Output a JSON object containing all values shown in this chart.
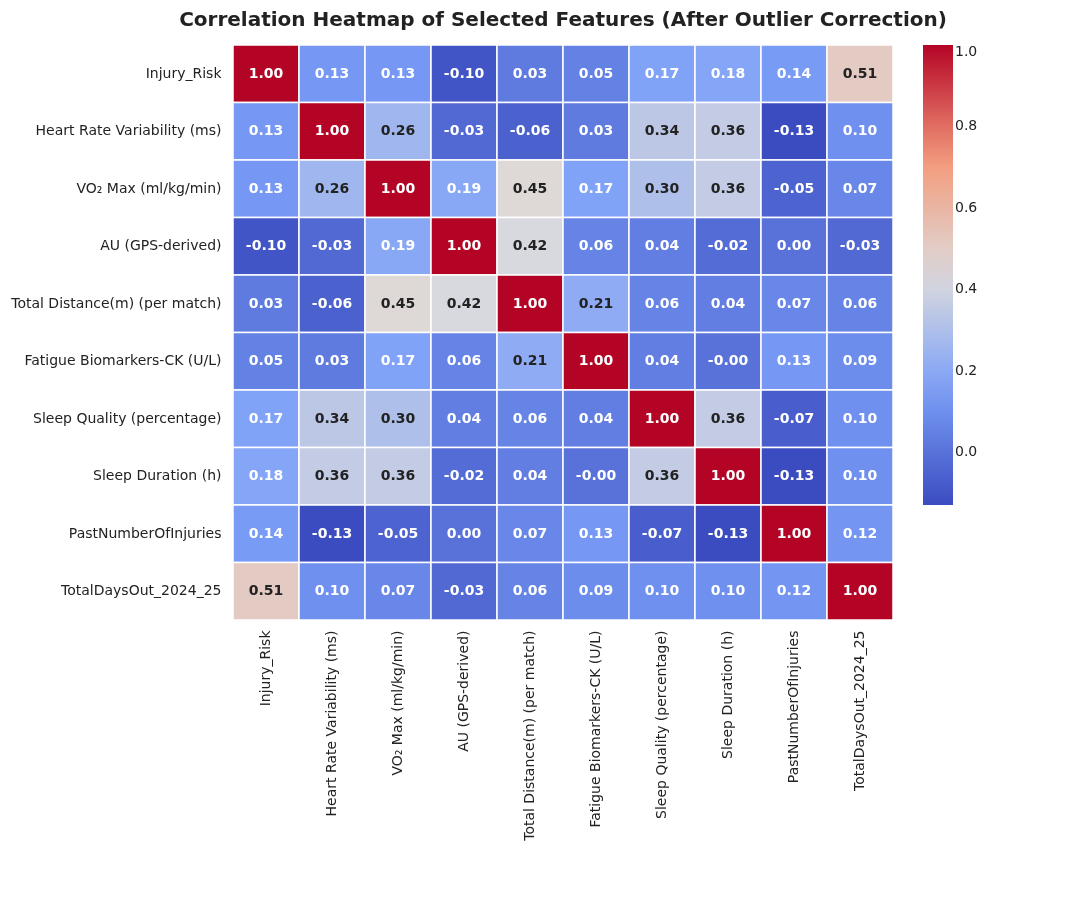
{
  "chart_data": {
    "type": "heatmap",
    "title": "Correlation Heatmap of Selected Features (After Outlier Correction)",
    "categories": [
      "Injury_Risk",
      "Heart Rate Variability (ms)",
      "VO₂ Max (ml/kg/min)",
      "AU (GPS-derived)",
      "Total Distance(m) (per match)",
      "Fatigue Biomarkers-CK (U/L)",
      "Sleep Quality (percentage)",
      "Sleep Duration (h)",
      "PastNumberOfInjuries",
      "TotalDaysOut_2024_25"
    ],
    "y_categories": [
      "Injury_Risk",
      "Heart Rate Variability (ms)",
      "VO₂ Max (ml/kg/min)",
      "AU (GPS-derived)",
      "Total Distance(m) (per match)",
      "Fatigue Biomarkers-CK (U/L)",
      "Sleep Quality (percentage)",
      "Sleep Duration (h)",
      "PastNumberOfInjuries",
      "TotalDaysOut_2024_25"
    ],
    "cells": [
      [
        1.0,
        0.13,
        0.13,
        -0.1,
        0.03,
        0.05,
        0.17,
        0.18,
        0.14,
        0.51
      ],
      [
        0.13,
        1.0,
        0.26,
        -0.03,
        -0.06,
        0.03,
        0.34,
        0.36,
        -0.13,
        0.1
      ],
      [
        0.13,
        0.26,
        1.0,
        0.19,
        0.45,
        0.17,
        0.3,
        0.36,
        -0.05,
        0.07
      ],
      [
        -0.1,
        -0.03,
        0.19,
        1.0,
        0.42,
        0.06,
        0.04,
        -0.02,
        0.0,
        -0.03
      ],
      [
        0.03,
        -0.06,
        0.45,
        0.42,
        1.0,
        0.21,
        0.06,
        0.04,
        0.07,
        0.06
      ],
      [
        0.05,
        0.03,
        0.17,
        0.06,
        0.21,
        1.0,
        0.04,
        0.0,
        0.13,
        0.09
      ],
      [
        0.17,
        0.34,
        0.3,
        0.04,
        0.06,
        0.04,
        1.0,
        0.36,
        -0.07,
        0.1
      ],
      [
        0.18,
        0.36,
        0.36,
        -0.02,
        0.04,
        0.0,
        0.36,
        1.0,
        -0.13,
        0.1
      ],
      [
        0.14,
        -0.13,
        -0.05,
        0.0,
        0.07,
        0.13,
        -0.07,
        -0.13,
        1.0,
        0.12
      ],
      [
        0.51,
        0.1,
        0.07,
        -0.03,
        0.06,
        0.09,
        0.1,
        0.1,
        0.12,
        1.0
      ]
    ],
    "cell_labels": [
      [
        "1.00",
        "0.13",
        "0.13",
        "-0.10",
        "0.03",
        "0.05",
        "0.17",
        "0.18",
        "0.14",
        "0.51"
      ],
      [
        "0.13",
        "1.00",
        "0.26",
        "-0.03",
        "-0.06",
        "0.03",
        "0.34",
        "0.36",
        "-0.13",
        "0.10"
      ],
      [
        "0.13",
        "0.26",
        "1.00",
        "0.19",
        "0.45",
        "0.17",
        "0.30",
        "0.36",
        "-0.05",
        "0.07"
      ],
      [
        "-0.10",
        "-0.03",
        "0.19",
        "1.00",
        "0.42",
        "0.06",
        "0.04",
        "-0.02",
        "0.00",
        "-0.03"
      ],
      [
        "0.03",
        "-0.06",
        "0.45",
        "0.42",
        "1.00",
        "0.21",
        "0.06",
        "0.04",
        "0.07",
        "0.06"
      ],
      [
        "0.05",
        "0.03",
        "0.17",
        "0.06",
        "0.21",
        "1.00",
        "0.04",
        "-0.00",
        "0.13",
        "0.09"
      ],
      [
        "0.17",
        "0.34",
        "0.30",
        "0.04",
        "0.06",
        "0.04",
        "1.00",
        "0.36",
        "-0.07",
        "0.10"
      ],
      [
        "0.18",
        "0.36",
        "0.36",
        "-0.02",
        "0.04",
        "-0.00",
        "0.36",
        "1.00",
        "-0.13",
        "0.10"
      ],
      [
        "0.14",
        "-0.13",
        "-0.05",
        "0.00",
        "0.07",
        "0.13",
        "-0.07",
        "-0.13",
        "1.00",
        "0.12"
      ],
      [
        "0.51",
        "0.10",
        "0.07",
        "-0.03",
        "0.06",
        "0.09",
        "0.10",
        "0.10",
        "0.12",
        "1.00"
      ]
    ],
    "clim": [
      -0.13,
      1.0
    ],
    "cticks": [
      {
        "value": 0,
        "label": "0.0"
      },
      {
        "value": 0.2,
        "label": "0.2"
      },
      {
        "value": 0.4,
        "label": "0.4"
      },
      {
        "value": 0.6,
        "label": "0.6"
      },
      {
        "value": 0.8,
        "label": "0.8"
      },
      {
        "value": 1,
        "label": "1.0"
      }
    ]
  }
}
